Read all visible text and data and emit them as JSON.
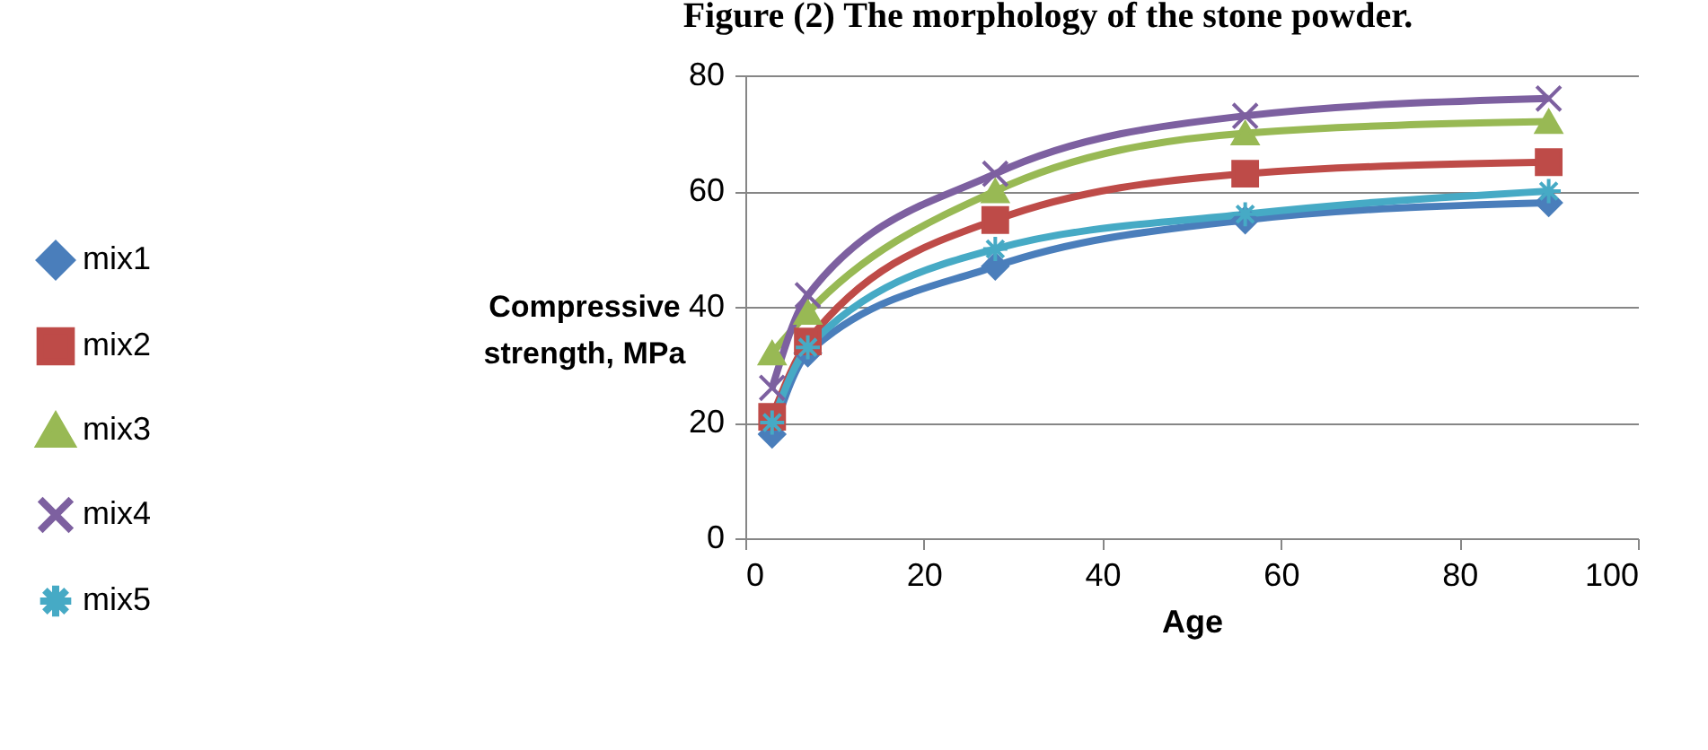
{
  "chart_data": {
    "type": "line",
    "title": "Figure (2) The morphology of the stone powder.",
    "xlabel": "Age",
    "ylabel": "Compressive strength, MPa",
    "x": [
      3,
      7,
      28,
      56,
      90
    ],
    "series": [
      {
        "name": "mix1",
        "color": "#4a7ebb",
        "marker": "diamond",
        "values": [
          18,
          32,
          47,
          55,
          58
        ]
      },
      {
        "name": "mix2",
        "color": "#be4b48",
        "marker": "square",
        "values": [
          21,
          34,
          55,
          63,
          65
        ]
      },
      {
        "name": "mix3",
        "color": "#98b954",
        "marker": "triangle",
        "values": [
          32,
          39,
          60,
          70,
          72
        ]
      },
      {
        "name": "mix4",
        "color": "#7d60a0",
        "marker": "cross",
        "values": [
          26,
          42,
          63,
          73,
          76
        ]
      },
      {
        "name": "mix5",
        "color": "#46aac5",
        "marker": "cross",
        "values": [
          20,
          33,
          50,
          56,
          60
        ]
      }
    ],
    "xlim": [
      0,
      100
    ],
    "xticks": [
      0,
      20,
      40,
      60,
      80,
      100
    ],
    "ylim": [
      0,
      80
    ],
    "yticks": [
      0,
      20,
      40,
      60,
      80
    ],
    "grid": "y",
    "legend": "left",
    "line_style": "solid"
  }
}
